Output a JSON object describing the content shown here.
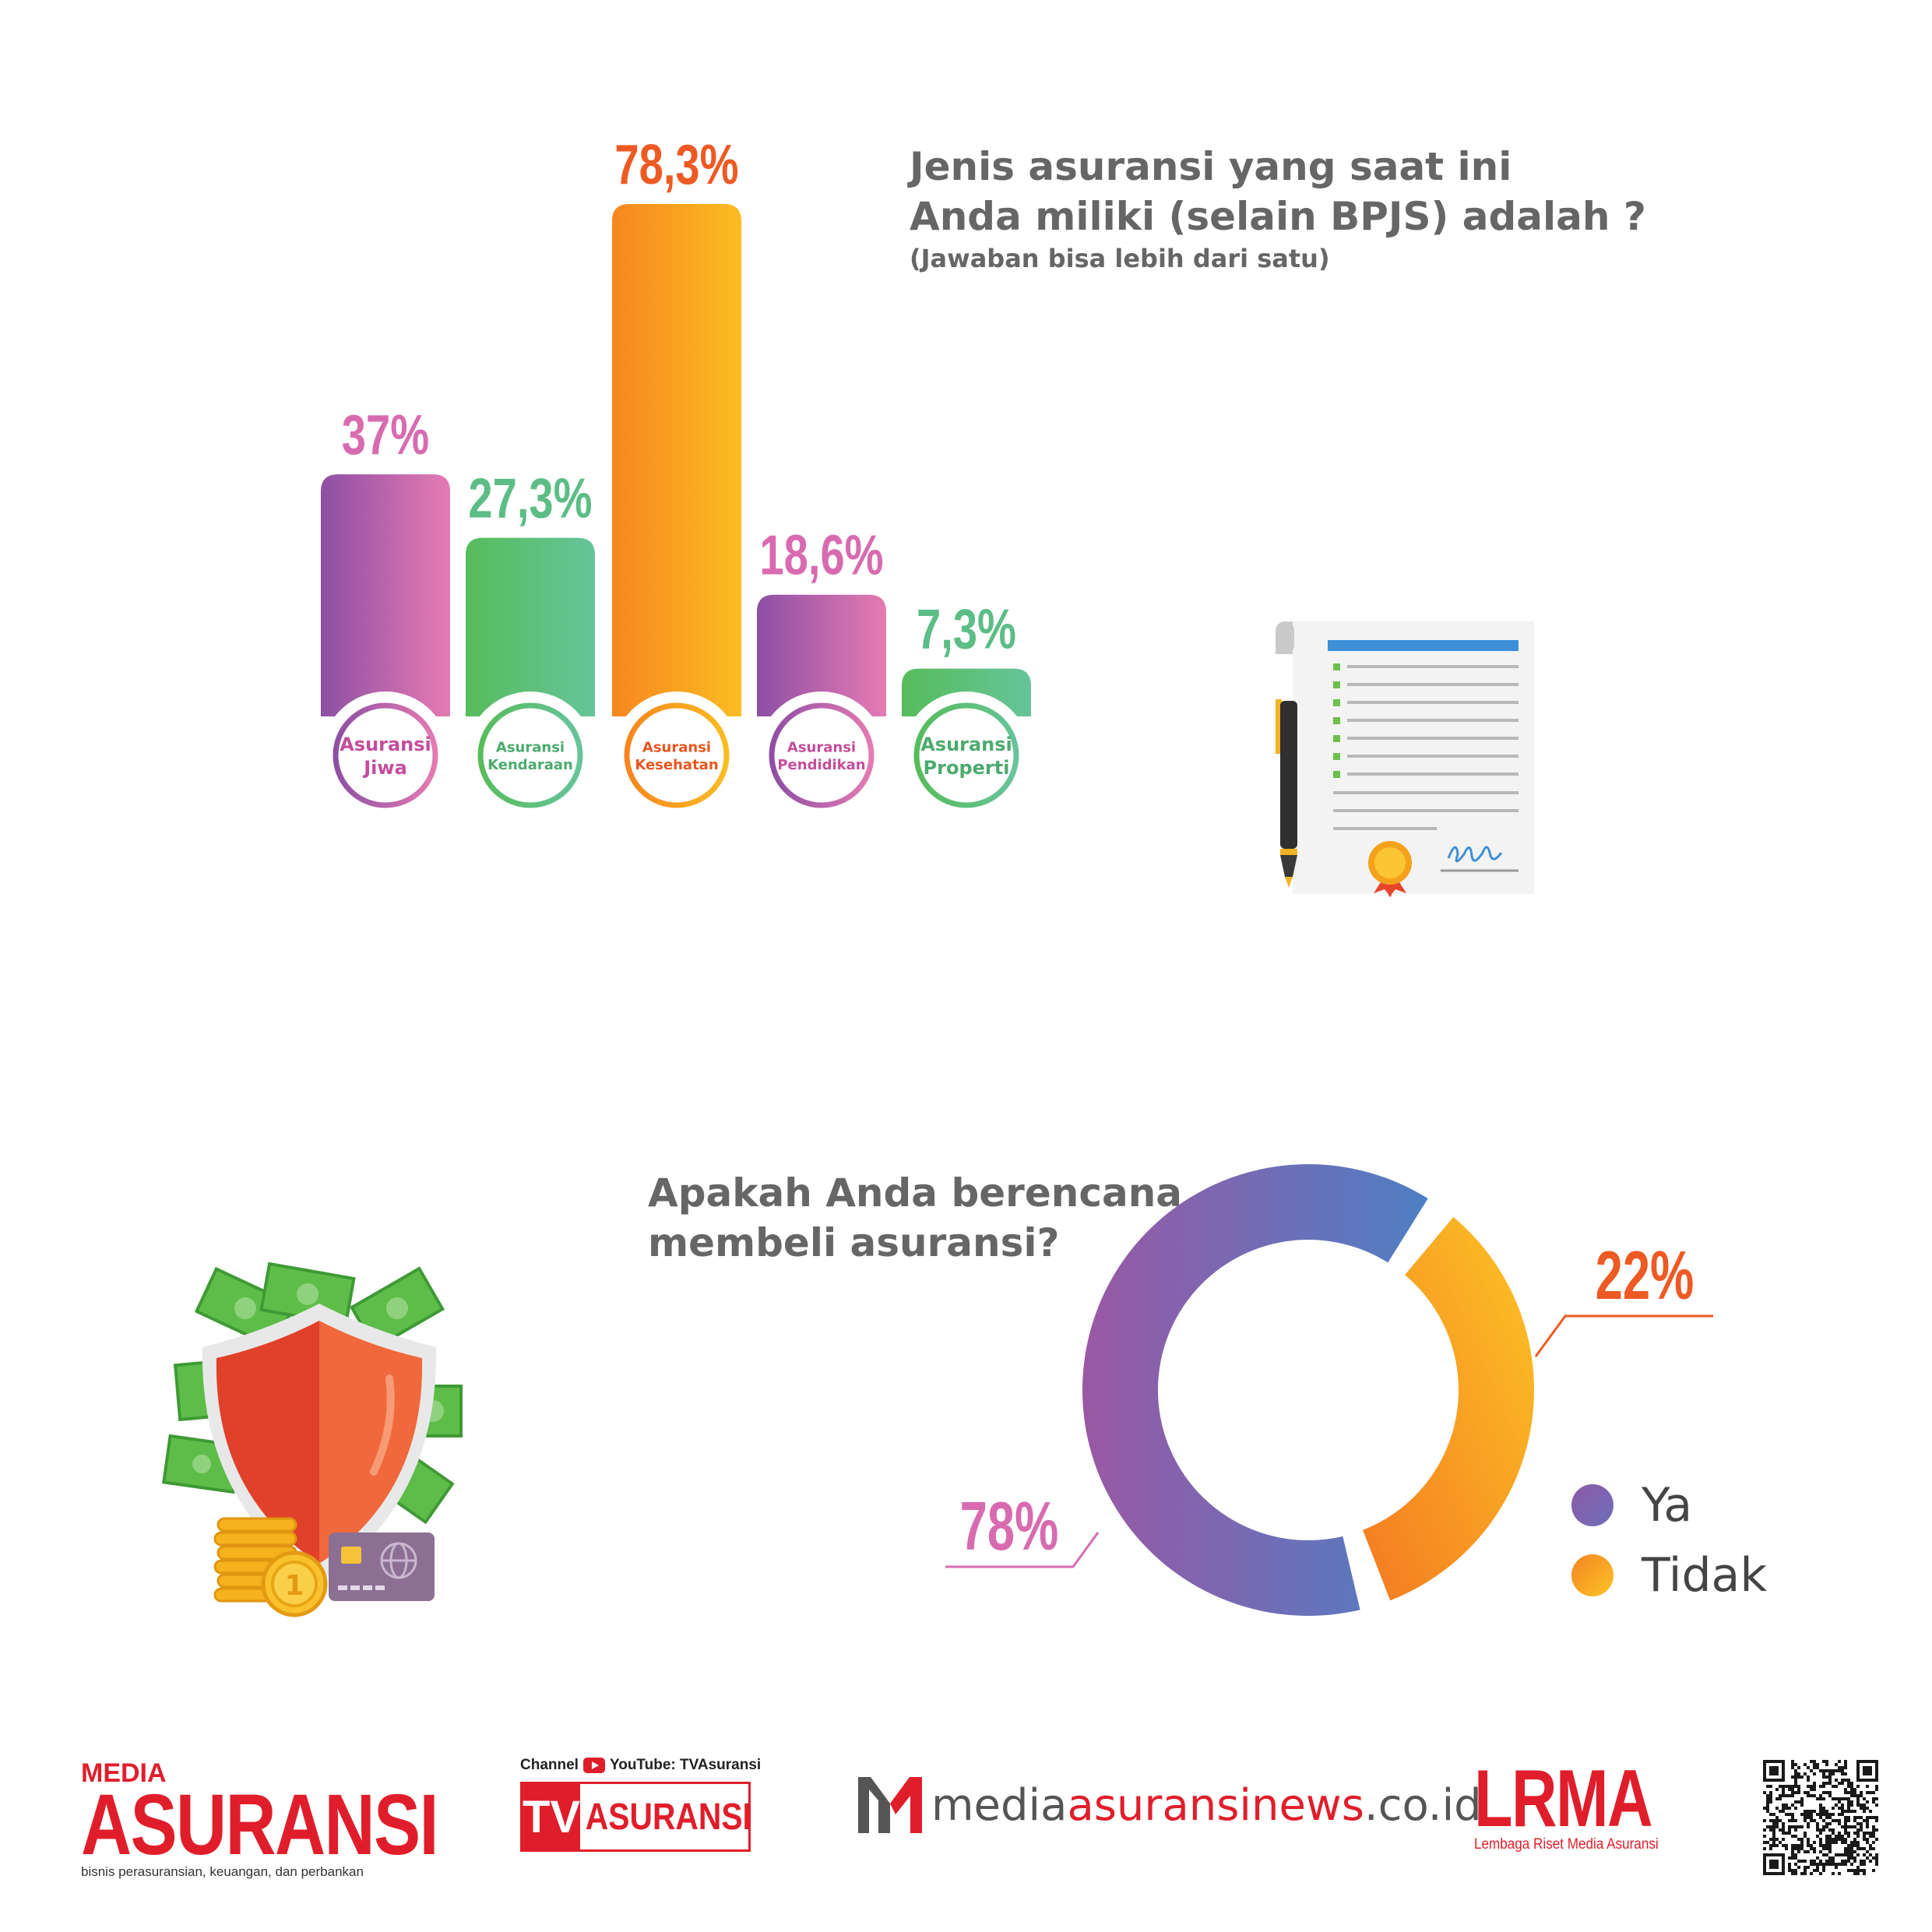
{
  "question1": {
    "line1": "Jenis asuransi yang saat ini",
    "line2": "Anda miliki (selain BPJS) adalah ?",
    "note": "(Jawaban bisa lebih dari satu)"
  },
  "question2": {
    "line1": "Apakah Anda berencana",
    "line2": "membeli asuransi?"
  },
  "chart_data": [
    {
      "type": "bar",
      "categories": [
        "Asuransi Jiwa",
        "Asuransi Kendaraan",
        "Asuransi Kesehatan",
        "Asuransi Pendidikan",
        "Asuransi Properti"
      ],
      "category_lines": [
        [
          "Asuransi",
          "Jiwa"
        ],
        [
          "Asuransi",
          "Kendaraan"
        ],
        [
          "Asuransi",
          "Kesehatan"
        ],
        [
          "Asuransi",
          "Pendidikan"
        ],
        [
          "Asuransi",
          "Properti"
        ]
      ],
      "values": [
        37,
        27.3,
        78.3,
        18.6,
        7.3
      ],
      "value_labels": [
        "37%",
        "27,3%",
        "78,3%",
        "18,6%",
        "7,3%"
      ],
      "colors": [
        [
          "#8e4fa4",
          "#e57bb2"
        ],
        [
          "#57bc5b",
          "#66c49a"
        ],
        [
          "#f7861f",
          "#fbbd22"
        ],
        [
          "#8e4fa4",
          "#e57bb2"
        ],
        [
          "#57bc5b",
          "#66c49a"
        ]
      ],
      "label_colors": [
        "#d86bb0",
        "#5cbd86",
        "#ee5a24",
        "#d86bb0",
        "#5cbd86"
      ],
      "circle_label_colors": [
        "#c34d9c",
        "#4caa6e",
        "#e8561f",
        "#c34d9c",
        "#4caa6e"
      ],
      "ylim": [
        0,
        100
      ]
    },
    {
      "type": "pie",
      "categories": [
        "Ya",
        "Tidak"
      ],
      "values": [
        78,
        22
      ],
      "value_labels": [
        "78%",
        "22%"
      ],
      "colors": [
        [
          "#9a58a4",
          "#4e7fc4"
        ],
        [
          "#f47a22",
          "#fcc425"
        ]
      ],
      "label_colors": [
        "#d86bb0",
        "#ee5a24"
      ],
      "legend": "right"
    }
  ],
  "legend": {
    "items": [
      {
        "label": "Ya",
        "color_a": "#8e5aa6",
        "color_b": "#6d6fbb"
      },
      {
        "label": "Tidak",
        "color_a": "#f48424",
        "color_b": "#fcc425"
      }
    ]
  },
  "footer": {
    "media_asuransi": {
      "small": "MEDIA",
      "big": "ASURANSI",
      "tagline": "bisnis perasuransian, keuangan, dan perbankan"
    },
    "tv_asuransi": {
      "channel": "Channel",
      "youtube": "YouTube: TVAsuransi",
      "tv": "TV",
      "name": "ASURANSI"
    },
    "website": {
      "prefix": "media",
      "middle": "asuransinews",
      "suffix": ".co.id"
    },
    "lrma": {
      "big": "LRMA",
      "tagline": "Lembaga Riset Media Asuransi"
    }
  },
  "icons": [
    "document-contract-icon",
    "pen-icon",
    "shield-money-icon",
    "coins-icon",
    "credit-card-icon",
    "qr-code-icon"
  ]
}
